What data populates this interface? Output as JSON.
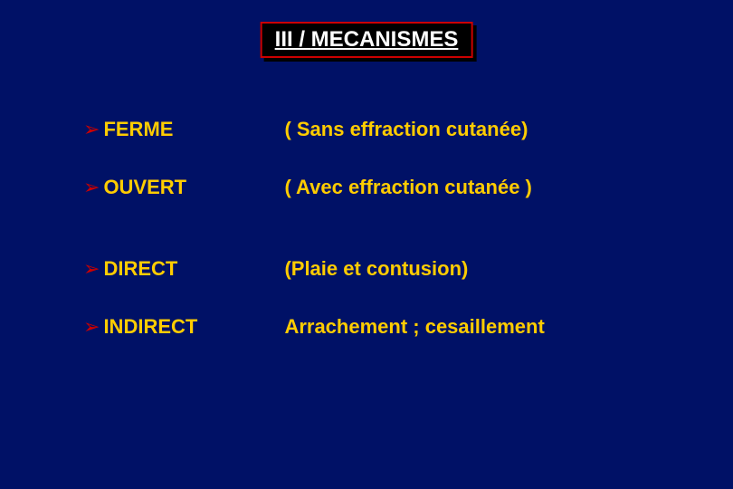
{
  "slide": {
    "background_color": "#001166",
    "title": {
      "prefix": "III / ",
      "main": "MECANISMES",
      "text_color": "#ffffff",
      "border_color": "#cc0000",
      "box_bg": "#000000",
      "fontsize": 24
    },
    "bullet_color": "#cc0000",
    "text_color": "#ffcc00",
    "item_fontsize": 22,
    "items": [
      {
        "term": "FERME",
        "desc": "( Sans effraction cutanée)",
        "gap_after": "normal"
      },
      {
        "term": "OUVERT",
        "desc": "( Avec effraction cutanée )",
        "gap_after": "large"
      },
      {
        "term": "DIRECT",
        "desc": "(Plaie et contusion)",
        "gap_after": "normal"
      },
      {
        "term": "INDIRECT",
        "desc": "Arrachement ; cesaillement",
        "gap_after": "normal"
      }
    ]
  }
}
